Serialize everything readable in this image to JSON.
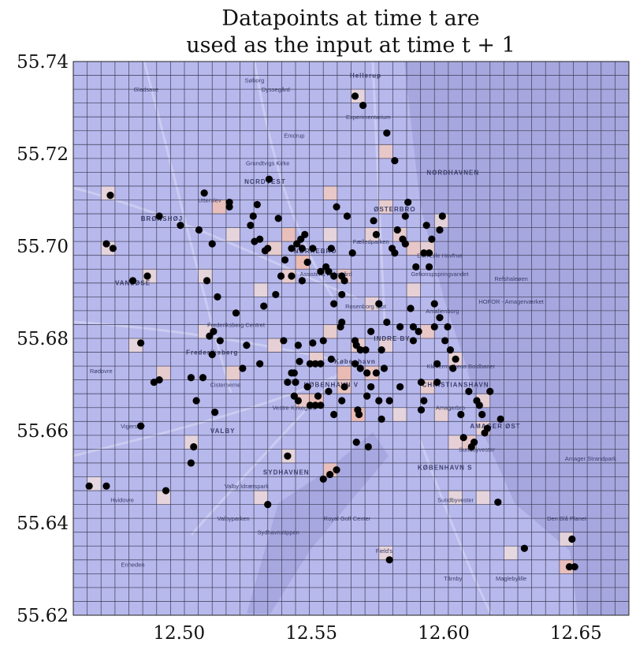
{
  "chart_data": {
    "type": "scatter",
    "title_lines": [
      "Datapoints at time t are",
      "used as the input at time t + 1"
    ],
    "xlabel": "",
    "ylabel": "",
    "xlim": [
      12.46,
      12.67
    ],
    "ylim": [
      55.62,
      55.74
    ],
    "x_ticks": [
      12.5,
      12.55,
      12.6,
      12.65
    ],
    "x_tick_labels": [
      "12.50",
      "12.55",
      "12.60",
      "12.65"
    ],
    "y_ticks": [
      55.62,
      55.64,
      55.66,
      55.68,
      55.7,
      55.72,
      55.74
    ],
    "y_tick_labels": [
      "55.62",
      "55.64",
      "55.66",
      "55.68",
      "55.70",
      "55.72",
      "55.74"
    ],
    "grid_cells": {
      "cols": 40,
      "rows": 40
    },
    "colors": {
      "background": "#b7b8ec",
      "water": "#a4a5de",
      "grid": "#3a3a52",
      "point": "#000000",
      "heat_low": "#e6e3ee",
      "heat_high": "#eeb6a8"
    },
    "points": [
      [
        12.466,
        55.648
      ],
      [
        12.4725,
        55.648
      ],
      [
        12.4725,
        55.7005
      ],
      [
        12.475,
        55.6995
      ],
      [
        12.474,
        55.711
      ],
      [
        12.4825,
        55.6925
      ],
      [
        12.4855,
        55.679
      ],
      [
        12.4855,
        55.661
      ],
      [
        12.488,
        55.6935
      ],
      [
        12.4905,
        55.6705
      ],
      [
        12.4925,
        55.671
      ],
      [
        12.4925,
        55.7065
      ],
      [
        12.495,
        55.647
      ],
      [
        12.5005,
        55.7045
      ],
      [
        12.5045,
        55.6715
      ],
      [
        12.5045,
        55.653
      ],
      [
        12.5055,
        55.6565
      ],
      [
        12.5065,
        55.6665
      ],
      [
        12.5075,
        55.7035
      ],
      [
        12.509,
        55.6715
      ],
      [
        12.5095,
        55.7115
      ],
      [
        12.5105,
        55.6925
      ],
      [
        12.5115,
        55.6805
      ],
      [
        12.5125,
        55.6765
      ],
      [
        12.5125,
        55.7005
      ],
      [
        12.513,
        55.6815
      ],
      [
        12.5135,
        55.664
      ],
      [
        12.5145,
        55.689
      ],
      [
        12.5155,
        55.6795
      ],
      [
        12.519,
        55.7085
      ],
      [
        12.519,
        55.7095
      ],
      [
        12.5215,
        55.6855
      ],
      [
        12.524,
        55.6735
      ],
      [
        12.5255,
        55.6785
      ],
      [
        12.527,
        55.7045
      ],
      [
        12.528,
        55.7065
      ],
      [
        12.5285,
        55.701
      ],
      [
        12.5295,
        55.709
      ],
      [
        12.5305,
        55.6745
      ],
      [
        12.532,
        55.687
      ],
      [
        12.5325,
        55.699
      ],
      [
        12.5335,
        55.644
      ],
      [
        12.534,
        55.7145
      ],
      [
        12.5365,
        55.6895
      ],
      [
        12.5375,
        55.706
      ],
      [
        12.5385,
        55.6935
      ],
      [
        12.5395,
        55.6795
      ],
      [
        12.54,
        55.697
      ],
      [
        12.541,
        55.6705
      ],
      [
        12.541,
        55.6545
      ],
      [
        12.5425,
        55.6995
      ],
      [
        12.5425,
        55.6725
      ],
      [
        12.5435,
        55.6675
      ],
      [
        12.544,
        55.6705
      ],
      [
        12.5445,
        55.7005
      ],
      [
        12.545,
        55.6785
      ],
      [
        12.545,
        55.6665
      ],
      [
        12.5455,
        55.675
      ],
      [
        12.546,
        55.7015
      ],
      [
        12.5465,
        55.6925
      ],
      [
        12.5475,
        55.7025
      ],
      [
        12.5485,
        55.6965
      ],
      [
        12.5495,
        55.6745
      ],
      [
        12.5495,
        55.6655
      ],
      [
        12.5505,
        55.6995
      ],
      [
        12.5505,
        55.679
      ],
      [
        12.5515,
        55.6745
      ],
      [
        12.5515,
        55.6655
      ],
      [
        12.5525,
        55.6675
      ],
      [
        12.5535,
        55.6655
      ],
      [
        12.5535,
        55.6745
      ],
      [
        12.5545,
        55.6795
      ],
      [
        12.5545,
        55.6495
      ],
      [
        12.5555,
        55.6955
      ],
      [
        12.5565,
        55.6945
      ],
      [
        12.5565,
        55.6685
      ],
      [
        12.557,
        55.6505
      ],
      [
        12.5575,
        55.6755
      ],
      [
        12.5585,
        55.6935
      ],
      [
        12.5585,
        55.6875
      ],
      [
        12.5585,
        55.6635
      ],
      [
        12.5595,
        55.6515
      ],
      [
        12.5595,
        55.7085
      ],
      [
        12.561,
        55.6825
      ],
      [
        12.5615,
        55.6835
      ],
      [
        12.5615,
        55.6665
      ],
      [
        12.5615,
        55.6935
      ],
      [
        12.5625,
        55.6925
      ],
      [
        12.5635,
        55.7065
      ],
      [
        12.5665,
        55.6795
      ],
      [
        12.5665,
        55.6745
      ],
      [
        12.5665,
        55.7325
      ],
      [
        12.567,
        55.6785
      ],
      [
        12.567,
        55.6575
      ],
      [
        12.5675,
        55.6645
      ],
      [
        12.568,
        55.6635
      ],
      [
        12.5685,
        55.6775
      ],
      [
        12.5695,
        55.7305
      ],
      [
        12.5705,
        55.6775
      ],
      [
        12.571,
        55.6725
      ],
      [
        12.571,
        55.6675
      ],
      [
        12.5715,
        55.6565
      ],
      [
        12.5725,
        55.6815
      ],
      [
        12.5735,
        55.7055
      ],
      [
        12.5745,
        55.7025
      ],
      [
        12.5755,
        55.6875
      ],
      [
        12.5755,
        55.6665
      ],
      [
        12.5765,
        55.6625
      ],
      [
        12.5775,
        55.6735
      ],
      [
        12.5785,
        55.7245
      ],
      [
        12.5795,
        55.6665
      ],
      [
        12.5795,
        55.632
      ],
      [
        12.5805,
        55.6995
      ],
      [
        12.5815,
        55.6985
      ],
      [
        12.5815,
        55.7185
      ],
      [
        12.5825,
        55.7035
      ],
      [
        12.5835,
        55.6825
      ],
      [
        12.5835,
        55.6695
      ],
      [
        12.5845,
        55.7015
      ],
      [
        12.5855,
        55.7065
      ],
      [
        12.5855,
        55.7005
      ],
      [
        12.5865,
        55.7095
      ],
      [
        12.5875,
        55.6865
      ],
      [
        12.5885,
        55.6795
      ],
      [
        12.5885,
        55.6825
      ],
      [
        12.5895,
        55.6955
      ],
      [
        12.5905,
        55.6815
      ],
      [
        12.5915,
        55.6705
      ],
      [
        12.5915,
        55.6645
      ],
      [
        12.5925,
        55.6665
      ],
      [
        12.5925,
        55.6985
      ],
      [
        12.5935,
        55.7045
      ],
      [
        12.5945,
        55.6955
      ],
      [
        12.5945,
        55.6985
      ],
      [
        12.5955,
        55.7015
      ],
      [
        12.5965,
        55.6875
      ],
      [
        12.5965,
        55.6825
      ],
      [
        12.5975,
        55.6745
      ],
      [
        12.5975,
        55.6705
      ],
      [
        12.5985,
        55.6845
      ],
      [
        12.5985,
        55.7035
      ],
      [
        12.5995,
        55.7065
      ],
      [
        12.6005,
        55.6795
      ],
      [
        12.6015,
        55.6825
      ],
      [
        12.6025,
        55.6775
      ],
      [
        12.6035,
        55.6735
      ],
      [
        12.6045,
        55.6755
      ],
      [
        12.6065,
        55.6635
      ],
      [
        12.6075,
        55.6585
      ],
      [
        12.6095,
        55.6685
      ],
      [
        12.6105,
        55.6565
      ],
      [
        12.6115,
        55.6575
      ],
      [
        12.6125,
        55.6665
      ],
      [
        12.6135,
        55.6655
      ],
      [
        12.6145,
        55.6635
      ],
      [
        12.6155,
        55.6595
      ],
      [
        12.6165,
        55.6605
      ],
      [
        12.6175,
        55.6685
      ],
      [
        12.6205,
        55.6445
      ],
      [
        12.6215,
        55.6625
      ],
      [
        12.6305,
        55.6345
      ],
      [
        12.6475,
        55.6305
      ],
      [
        12.6485,
        55.6365
      ],
      [
        12.6495,
        55.6305
      ],
      [
        12.5435,
        55.6725
      ],
      [
        12.5305,
        55.7015
      ],
      [
        12.5335,
        55.6995
      ],
      [
        12.5425,
        55.6935
      ],
      [
        12.5465,
        55.6995
      ],
      [
        12.5535,
        55.6945
      ],
      [
        12.5575,
        55.6995
      ],
      [
        12.5615,
        55.6895
      ],
      [
        12.5655,
        55.6985
      ],
      [
        12.5685,
        55.6735
      ],
      [
        12.5725,
        55.6695
      ],
      [
        12.5745,
        55.6725
      ],
      [
        12.5765,
        55.6775
      ],
      [
        12.5785,
        55.6835
      ],
      [
        12.5625,
        55.6695
      ],
      [
        12.5485,
        55.6695
      ]
    ],
    "heat_cells": [
      [
        12.5475,
        55.6975,
        0.9
      ],
      [
        12.5425,
        55.7015,
        0.8
      ],
      [
        12.5625,
        55.6735,
        0.9
      ],
      [
        12.5675,
        55.6645,
        0.9
      ],
      [
        12.5575,
        55.6505,
        0.8
      ],
      [
        12.5525,
        55.6675,
        0.8
      ],
      [
        12.5625,
        55.6685,
        0.7
      ],
      [
        12.5725,
        55.6725,
        0.7
      ],
      [
        12.5925,
        55.6825,
        0.6
      ],
      [
        12.6075,
        55.6575,
        0.6
      ],
      [
        12.6475,
        55.6295,
        0.8
      ],
      [
        12.5175,
        55.7085,
        0.8
      ],
      [
        12.5825,
        55.7025,
        0.5
      ],
      [
        12.5775,
        55.7195,
        0.6
      ],
      [
        12.5575,
        55.7125,
        0.6
      ],
      [
        12.5425,
        55.6925,
        0.5
      ],
      [
        12.5625,
        55.6935,
        0.6
      ],
      [
        12.5375,
        55.6985,
        0.5
      ],
      [
        12.4925,
        55.6715,
        0.5
      ],
      [
        12.5225,
        55.6735,
        0.5
      ],
      [
        12.5875,
        55.6985,
        0.6
      ],
      [
        12.5775,
        55.7075,
        0.5
      ],
      [
        12.5925,
        55.6695,
        0.5
      ],
      [
        12.6025,
        55.6765,
        0.4
      ],
      [
        12.6125,
        55.6665,
        0.4
      ],
      [
        12.5575,
        55.6815,
        0.5
      ],
      [
        12.5475,
        55.6665,
        0.6
      ],
      [
        12.5325,
        55.6895,
        0.3
      ],
      [
        12.5225,
        55.7035,
        0.3
      ],
      [
        12.5075,
        55.6925,
        0.3
      ],
      [
        12.5125,
        55.6815,
        0.3
      ],
      [
        12.5025,
        55.6575,
        0.3
      ],
      [
        12.4925,
        55.6465,
        0.3
      ],
      [
        12.4825,
        55.6785,
        0.3
      ],
      [
        12.4875,
        55.6925,
        0.3
      ],
      [
        12.4725,
        55.7115,
        0.3
      ],
      [
        12.4725,
        55.7005,
        0.3
      ],
      [
        12.4675,
        55.6475,
        0.2
      ],
      [
        12.5325,
        55.6445,
        0.3
      ],
      [
        12.5425,
        55.6545,
        0.3
      ],
      [
        12.5675,
        55.7315,
        0.3
      ],
      [
        12.5775,
        55.6325,
        0.3
      ],
      [
        12.6025,
        55.6465,
        0.3
      ],
      [
        12.6175,
        55.6455,
        0.3
      ],
      [
        12.6275,
        55.6345,
        0.2
      ],
      [
        12.6475,
        55.6355,
        0.3
      ],
      [
        12.5825,
        55.6625,
        0.3
      ],
      [
        12.5975,
        55.6625,
        0.4
      ],
      [
        12.6125,
        55.6615,
        0.4
      ],
      [
        12.6025,
        55.6575,
        0.4
      ],
      [
        12.5875,
        55.6895,
        0.4
      ],
      [
        12.5725,
        55.6875,
        0.4
      ],
      [
        12.5575,
        55.7035,
        0.3
      ],
      [
        12.5525,
        55.6755,
        0.5
      ],
      [
        12.5375,
        55.6785,
        0.4
      ],
      [
        12.5725,
        55.7015,
        0.4
      ],
      [
        12.5925,
        55.6985,
        0.4
      ],
      [
        12.5975,
        55.7045,
        0.3
      ],
      [
        12.5775,
        55.6775,
        0.4
      ],
      [
        12.5675,
        55.6785,
        0.5
      ]
    ],
    "map_labels": [
      {
        "text": "Hellerup",
        "x": 12.5705,
        "y": 55.7365,
        "bold": true
      },
      {
        "text": "Søborg",
        "x": 12.5285,
        "y": 55.7355,
        "bold": false
      },
      {
        "text": "Gladsaxe",
        "x": 12.4875,
        "y": 55.7335,
        "bold": false
      },
      {
        "text": "Dyssegård",
        "x": 12.5365,
        "y": 55.7335,
        "bold": false
      },
      {
        "text": "Experimentarium",
        "x": 12.5715,
        "y": 55.7275,
        "bold": false
      },
      {
        "text": "Emdrup",
        "x": 12.5435,
        "y": 55.7235,
        "bold": false
      },
      {
        "text": "Grundtvigs Kirke",
        "x": 12.5335,
        "y": 55.7175,
        "bold": false
      },
      {
        "text": "NORDVEST",
        "x": 12.5325,
        "y": 55.7135,
        "bold": true
      },
      {
        "text": "NORDHAVNEN",
        "x": 12.6035,
        "y": 55.7155,
        "bold": true
      },
      {
        "text": "Utterslev",
        "x": 12.5115,
        "y": 55.7095,
        "bold": false
      },
      {
        "text": "BRØNSHØJ",
        "x": 12.4935,
        "y": 55.7055,
        "bold": true
      },
      {
        "text": "ØSTERBRO",
        "x": 12.5815,
        "y": 55.7075,
        "bold": true
      },
      {
        "text": "Fælledparken",
        "x": 12.5725,
        "y": 55.7005,
        "bold": false
      },
      {
        "text": "NØRREBRO",
        "x": 12.5515,
        "y": 55.6985,
        "bold": true
      },
      {
        "text": "Den Lille Havfrue",
        "x": 12.5985,
        "y": 55.6975,
        "bold": false
      },
      {
        "text": "VANLØSE",
        "x": 12.4825,
        "y": 55.6915,
        "bold": true
      },
      {
        "text": "Assistens Kirkegård",
        "x": 12.5555,
        "y": 55.6935,
        "bold": false
      },
      {
        "text": "Gefionspspringvandet",
        "x": 12.5985,
        "y": 55.6935,
        "bold": false
      },
      {
        "text": "Refshaleøen",
        "x": 12.6255,
        "y": 55.6925,
        "bold": false
      },
      {
        "text": "Rosenborg Slot",
        "x": 12.5705,
        "y": 55.6865,
        "bold": false
      },
      {
        "text": "Amalienborg",
        "x": 12.5995,
        "y": 55.6855,
        "bold": false
      },
      {
        "text": "HOFOR - Amagerværket",
        "x": 12.6255,
        "y": 55.6875,
        "bold": false
      },
      {
        "text": "Frederiksberg Centret",
        "x": 12.5215,
        "y": 55.6825,
        "bold": false
      },
      {
        "text": "INDRE BY",
        "x": 12.5805,
        "y": 55.6795,
        "bold": true
      },
      {
        "text": "Frederiksberg",
        "x": 12.5125,
        "y": 55.6765,
        "bold": true
      },
      {
        "text": "København",
        "x": 12.5665,
        "y": 55.6745,
        "bold": true
      },
      {
        "text": "Rødovre",
        "x": 12.4705,
        "y": 55.6725,
        "bold": false
      },
      {
        "text": "Kløvermarkens Boldbaner",
        "x": 12.6065,
        "y": 55.6735,
        "bold": false
      },
      {
        "text": "Cisternerne",
        "x": 12.5175,
        "y": 55.6695,
        "bold": false
      },
      {
        "text": "KØBENHAVN V",
        "x": 12.5575,
        "y": 55.6695,
        "bold": true
      },
      {
        "text": "CHRISTIANSHAVN",
        "x": 12.6045,
        "y": 55.6695,
        "bold": true
      },
      {
        "text": "Vestre Kirkegård",
        "x": 12.5435,
        "y": 55.6645,
        "bold": false
      },
      {
        "text": "Amagerbro",
        "x": 12.6025,
        "y": 55.6645,
        "bold": false
      },
      {
        "text": "VALBY",
        "x": 12.5165,
        "y": 55.6595,
        "bold": true
      },
      {
        "text": "Vigerslev",
        "x": 12.4825,
        "y": 55.6605,
        "bold": false
      },
      {
        "text": "AMAGER ØST",
        "x": 12.6195,
        "y": 55.6605,
        "bold": true
      },
      {
        "text": "Sundbyvester",
        "x": 12.6125,
        "y": 55.6555,
        "bold": false
      },
      {
        "text": "Amager Strandpark",
        "x": 12.6555,
        "y": 55.6535,
        "bold": false
      },
      {
        "text": "SYDHAVNEN",
        "x": 12.5405,
        "y": 55.6505,
        "bold": true
      },
      {
        "text": "KØBENHAVN S",
        "x": 12.6005,
        "y": 55.6515,
        "bold": true
      },
      {
        "text": "Valby Idrætspark",
        "x": 12.5255,
        "y": 55.6475,
        "bold": false
      },
      {
        "text": "Hvidovre",
        "x": 12.4785,
        "y": 55.6445,
        "bold": false
      },
      {
        "text": "Sundbyvester",
        "x": 12.6045,
        "y": 55.6445,
        "bold": false
      },
      {
        "text": "Valbyparken",
        "x": 12.5205,
        "y": 55.6405,
        "bold": false
      },
      {
        "text": "Royal Golf Center",
        "x": 12.5635,
        "y": 55.6405,
        "bold": false
      },
      {
        "text": "Den Blå Planet",
        "x": 12.6465,
        "y": 55.6405,
        "bold": false
      },
      {
        "text": "Sydhavnstippen",
        "x": 12.5375,
        "y": 55.6375,
        "bold": false
      },
      {
        "text": "Field's",
        "x": 12.5775,
        "y": 55.6335,
        "bold": false
      },
      {
        "text": "Enheden",
        "x": 12.4825,
        "y": 55.6305,
        "bold": false
      },
      {
        "text": "Tårnby",
        "x": 12.6035,
        "y": 55.6275,
        "bold": false
      },
      {
        "text": "Maglebylille",
        "x": 12.6255,
        "y": 55.6275,
        "bold": false
      }
    ]
  }
}
